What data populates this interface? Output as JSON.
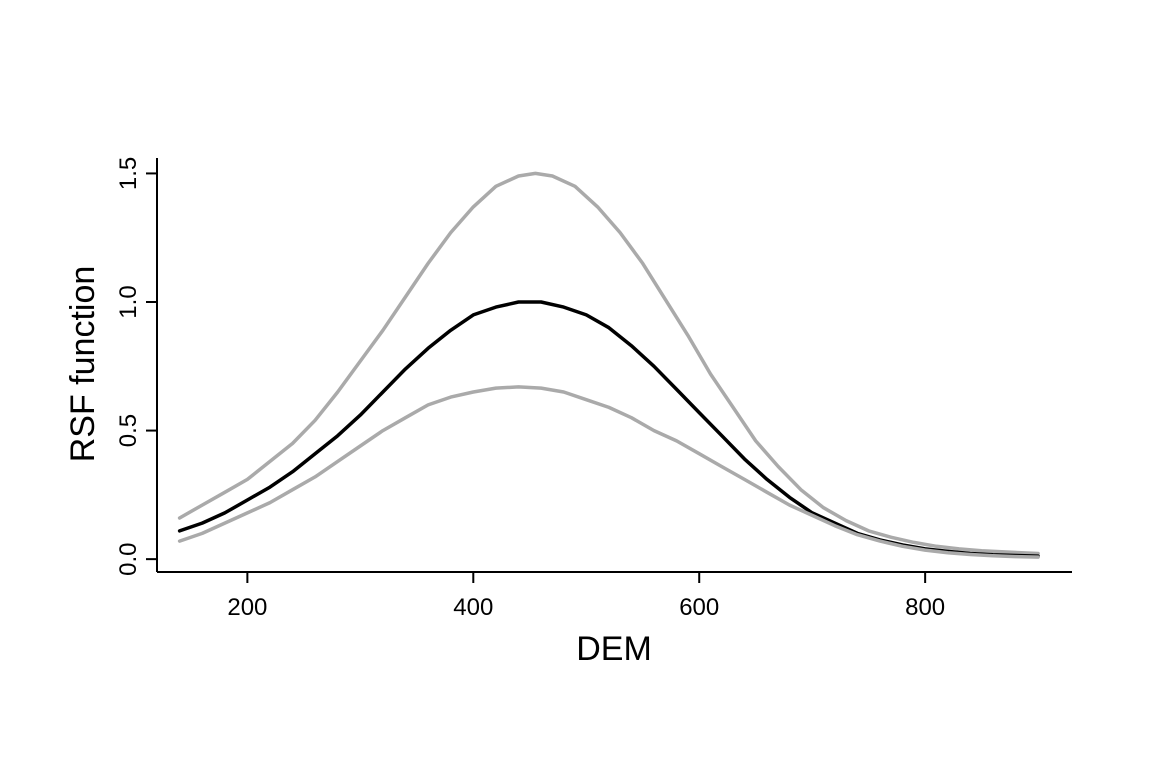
{
  "chart_data": {
    "type": "line",
    "xlabel": "DEM",
    "ylabel": "RSF function",
    "xlim": [
      120,
      930
    ],
    "ylim": [
      -0.05,
      1.56
    ],
    "xticks": [
      200,
      400,
      600,
      800
    ],
    "yticks": [
      0.0,
      0.5,
      1.0,
      1.5
    ],
    "x_tick_labels": [
      "200",
      "400",
      "600",
      "800"
    ],
    "y_tick_labels": [
      "0.0",
      "0.5",
      "1.0",
      "1.5"
    ],
    "grid": false,
    "legend": "none",
    "series": [
      {
        "role": "upper-bound",
        "color": "#aaaaaa",
        "x": [
          140,
          160,
          180,
          200,
          220,
          240,
          260,
          280,
          300,
          320,
          340,
          360,
          380,
          400,
          420,
          440,
          455,
          470,
          490,
          510,
          530,
          550,
          570,
          590,
          610,
          630,
          650,
          670,
          690,
          710,
          730,
          750,
          770,
          790,
          810,
          830,
          850,
          870,
          900
        ],
        "y": [
          0.16,
          0.21,
          0.26,
          0.31,
          0.38,
          0.45,
          0.54,
          0.65,
          0.77,
          0.89,
          1.02,
          1.15,
          1.27,
          1.37,
          1.45,
          1.49,
          1.5,
          1.49,
          1.45,
          1.37,
          1.27,
          1.15,
          1.01,
          0.87,
          0.72,
          0.59,
          0.46,
          0.36,
          0.27,
          0.2,
          0.15,
          0.11,
          0.085,
          0.065,
          0.05,
          0.04,
          0.033,
          0.028,
          0.022
        ]
      },
      {
        "role": "estimate",
        "color": "#000000",
        "x": [
          140,
          160,
          180,
          200,
          220,
          240,
          260,
          280,
          300,
          320,
          340,
          360,
          380,
          400,
          420,
          440,
          450,
          460,
          480,
          500,
          520,
          540,
          560,
          580,
          600,
          620,
          640,
          660,
          680,
          700,
          720,
          740,
          760,
          780,
          800,
          820,
          840,
          860,
          880,
          900
        ],
        "y": [
          0.11,
          0.14,
          0.18,
          0.23,
          0.28,
          0.34,
          0.41,
          0.48,
          0.56,
          0.65,
          0.74,
          0.82,
          0.89,
          0.95,
          0.98,
          1.0,
          1.0,
          1.0,
          0.98,
          0.95,
          0.9,
          0.83,
          0.75,
          0.66,
          0.57,
          0.48,
          0.39,
          0.31,
          0.24,
          0.18,
          0.14,
          0.1,
          0.075,
          0.055,
          0.04,
          0.03,
          0.022,
          0.017,
          0.014,
          0.012
        ]
      },
      {
        "role": "lower-bound",
        "color": "#aaaaaa",
        "x": [
          140,
          160,
          180,
          200,
          220,
          240,
          260,
          280,
          300,
          320,
          340,
          360,
          380,
          400,
          420,
          440,
          460,
          480,
          500,
          520,
          540,
          560,
          580,
          600,
          620,
          640,
          660,
          680,
          700,
          720,
          740,
          760,
          780,
          800,
          820,
          840,
          860,
          880,
          900
        ],
        "y": [
          0.07,
          0.1,
          0.14,
          0.18,
          0.22,
          0.27,
          0.32,
          0.38,
          0.44,
          0.5,
          0.55,
          0.6,
          0.63,
          0.65,
          0.665,
          0.67,
          0.665,
          0.65,
          0.62,
          0.59,
          0.55,
          0.5,
          0.46,
          0.41,
          0.36,
          0.31,
          0.26,
          0.21,
          0.17,
          0.13,
          0.095,
          0.07,
          0.05,
          0.035,
          0.025,
          0.018,
          0.013,
          0.01,
          0.008
        ]
      }
    ]
  }
}
